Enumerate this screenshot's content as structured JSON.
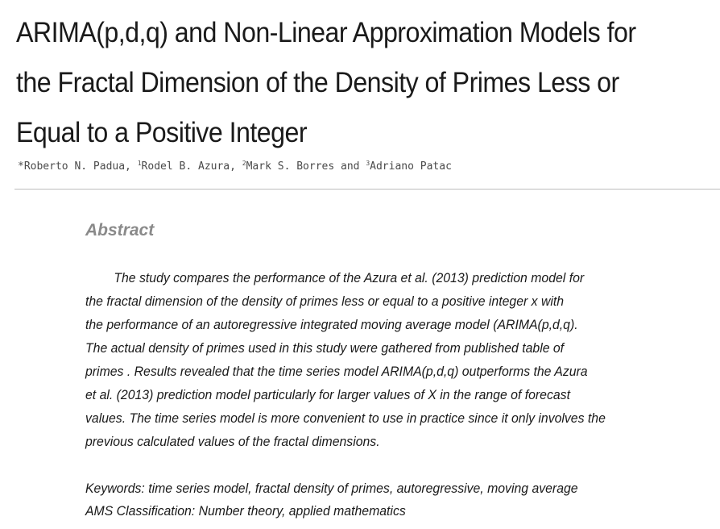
{
  "title_lines": [
    "ARIMA(p,d,q) and Non-Linear Approximation Models for",
    "the Fractal Dimension of the Density of Primes Less or",
    "Equal to a Positive Integer"
  ],
  "authors": {
    "a1_mark": "*",
    "a1_name": "Roberto N. Padua, ",
    "a2_mark": "1",
    "a2_name": "Rodel B. Azura, ",
    "a3_mark": "2",
    "a3_name": "Mark S. Borres and ",
    "a4_mark": "3",
    "a4_name": "Adriano Patac"
  },
  "abstract": {
    "heading": "Abstract",
    "lines": [
      "The study compares the performance of the Azura et al. (2013) prediction model for",
      "the fractal dimension of the density of primes less or equal to a positive integer x with",
      "the performance of an autoregressive integrated moving average model (ARIMA(p,d,q).",
      "The actual density of primes used in this study were gathered from published table of",
      "primes . Results revealed that the time series model ARIMA(p,d,q) outperforms the Azura",
      "et al. (2013) prediction model particularly for larger values of X in the range of forecast",
      "values. The time series model is more convenient to use in practice since it only involves the",
      "previous calculated values of the fractal dimensions."
    ]
  },
  "keywords_line": "Keywords: time series model,  fractal density of primes, autoregressive, moving average",
  "ams_line": "AMS Classification: Number theory, applied mathematics"
}
